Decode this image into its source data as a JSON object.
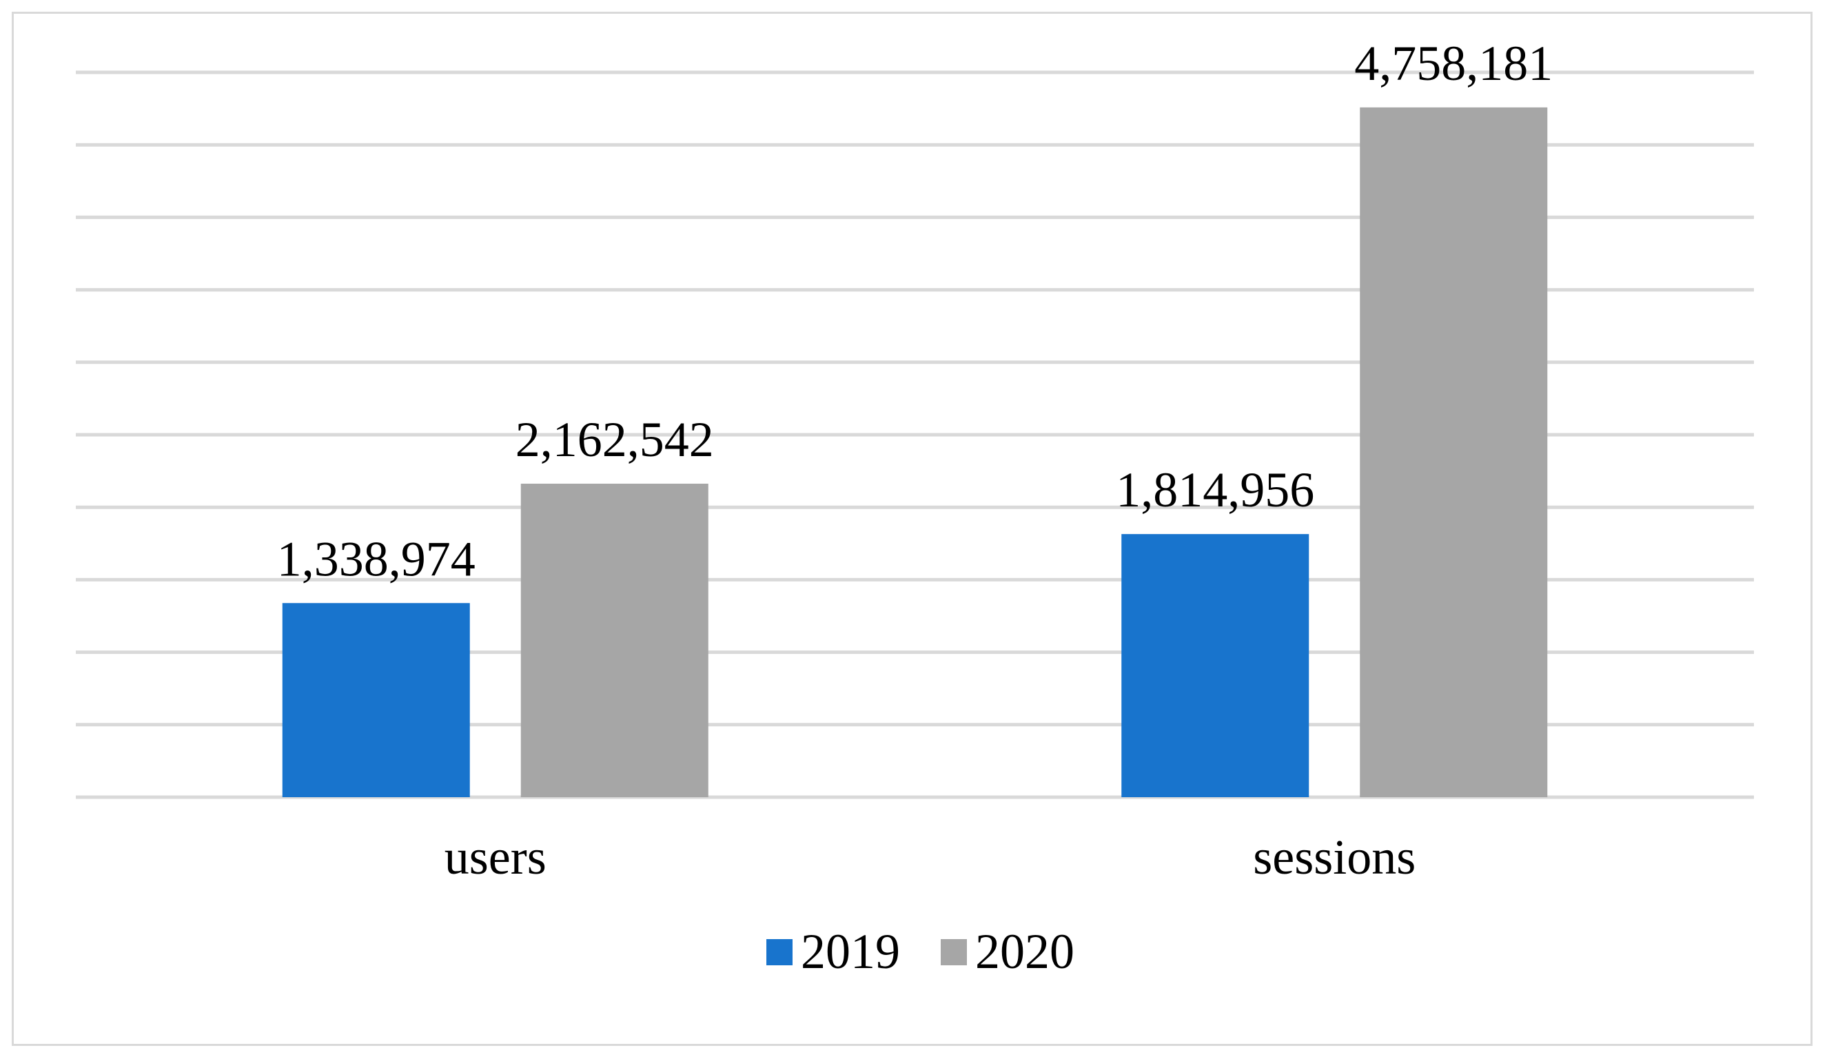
{
  "chart_data": {
    "type": "bar",
    "categories": [
      "users",
      "sessions"
    ],
    "series": [
      {
        "name": "2019",
        "values": [
          1338974,
          1814956
        ],
        "color": "#1874cd",
        "labels": [
          "1,338,974",
          "1,814,956"
        ]
      },
      {
        "name": "2020",
        "values": [
          2162542,
          4758181
        ],
        "color": "#a6a6a6",
        "labels": [
          "2,162,542",
          "4,758,181"
        ]
      }
    ],
    "ylim": [
      0,
      5000000
    ],
    "gridlines": true,
    "grid_step": 500000,
    "legend_position": "bottom",
    "title": "",
    "xlabel": "",
    "ylabel": ""
  }
}
